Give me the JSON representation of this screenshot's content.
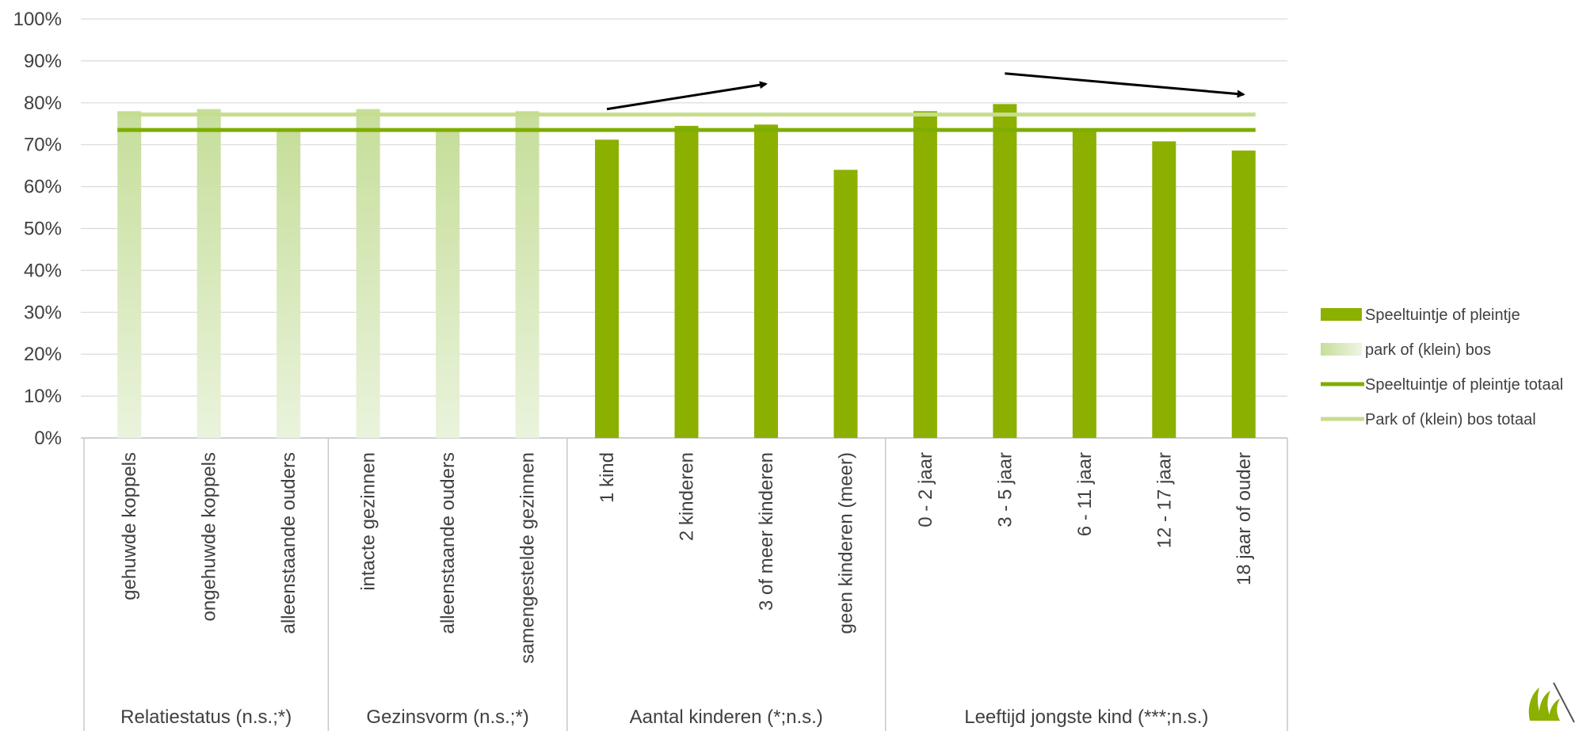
{
  "chart_data": {
    "type": "bar",
    "ylim": [
      0,
      1
    ],
    "yticks": [
      "0%",
      "10%",
      "20%",
      "30%",
      "40%",
      "50%",
      "60%",
      "70%",
      "80%",
      "90%",
      "100%"
    ],
    "grid": true,
    "legend_position": "right",
    "groups": [
      {
        "label": "Relatiestatus (n.s.;*)",
        "series": "park of (klein) bos",
        "categories": [
          "gehuwde koppels",
          "ongehuwde koppels",
          "alleenstaande ouders"
        ],
        "values": [
          0.78,
          0.785,
          0.735
        ]
      },
      {
        "label": "Gezinsvorm (n.s.;*)",
        "series": "park of (klein) bos",
        "categories": [
          "intacte gezinnen",
          "alleenstaande ouders",
          "samengestelde gezinnen"
        ],
        "values": [
          0.785,
          0.735,
          0.78
        ]
      },
      {
        "label": "Aantal kinderen (*;n.s.)",
        "series": "Speeltuintje of pleintje",
        "categories": [
          "1 kind",
          "2 kinderen",
          "3 of meer kinderen",
          "geen kinderen (meer)"
        ],
        "values": [
          0.712,
          0.745,
          0.748,
          0.64
        ]
      },
      {
        "label": "Leeftijd jongste kind  (***;n.s.)",
        "series": "Speeltuintje of pleintje",
        "categories": [
          "0 - 2 jaar",
          "3 - 5 jaar",
          "6 - 11 jaar",
          "12 - 17 jaar",
          "18 jaar of ouder"
        ],
        "values": [
          0.78,
          0.797,
          0.735,
          0.708,
          0.686
        ]
      }
    ],
    "series": [
      {
        "name": "Speeltuintje of pleintje",
        "kind": "bar",
        "color": "#8cb000"
      },
      {
        "name": "park of (klein) bos",
        "kind": "bar",
        "color": "#c6de9a"
      },
      {
        "name": "Speeltuintje of pleintje totaal",
        "kind": "line",
        "color": "#7fad00",
        "value": 0.735
      },
      {
        "name": "Park of (klein) bos totaal",
        "kind": "line",
        "color": "#c6de8c",
        "value": 0.772
      }
    ],
    "annotations": [
      {
        "type": "arrow",
        "from": {
          "category": "1 kind",
          "y": 0.785
        },
        "to": {
          "category": "3 of meer kinderen",
          "y": 0.845
        }
      },
      {
        "type": "arrow",
        "from": {
          "category": "3 - 5 jaar",
          "y": 0.87
        },
        "to": {
          "category": "18 jaar of ouder",
          "y": 0.82
        }
      }
    ]
  }
}
